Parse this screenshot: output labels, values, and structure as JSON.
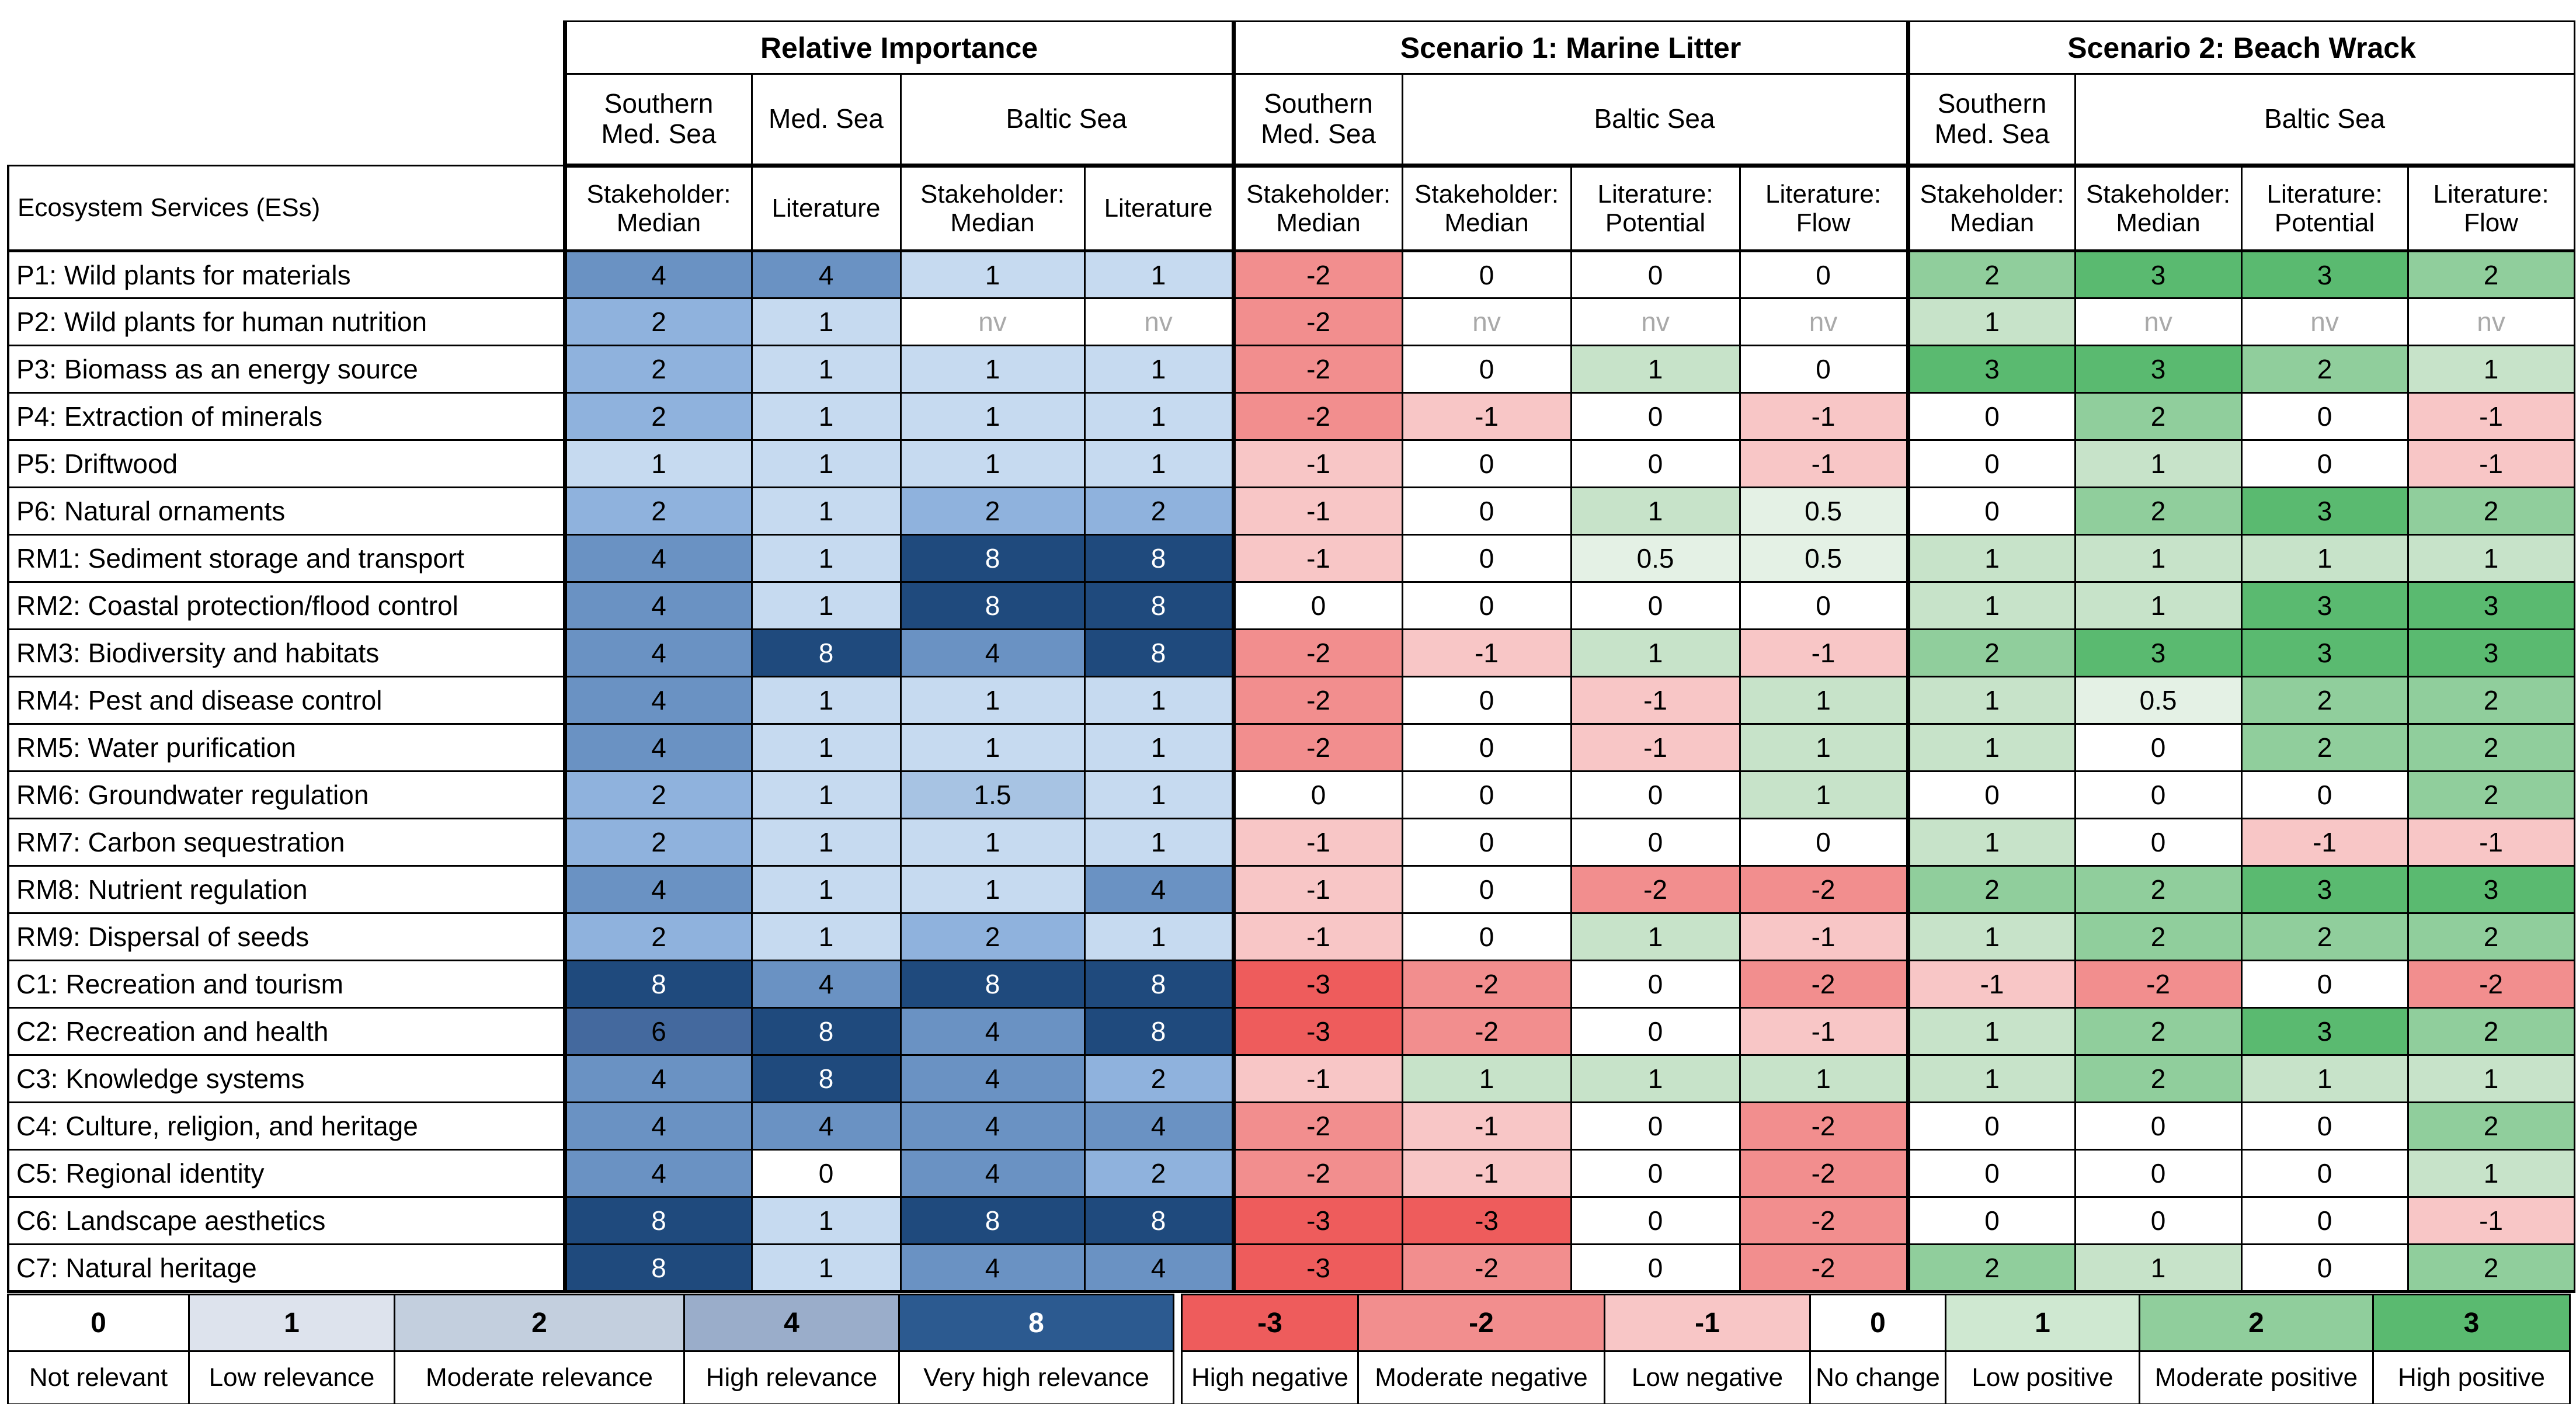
{
  "chart_data": {
    "type": "heatmap",
    "corner_label": "Ecosystem Services (ESs)",
    "groups": [
      {
        "label": "Relative Importance",
        "scale": "relevance",
        "seas": [
          {
            "label": "Southern\nMed. Sea",
            "span": 1
          },
          {
            "label": "Med. Sea",
            "span": 1
          },
          {
            "label": "Baltic Sea",
            "span": 2
          }
        ],
        "columns": [
          "Stakeholder:\nMedian",
          "Literature",
          "Stakeholder:\nMedian",
          "Literature"
        ]
      },
      {
        "label": "Scenario 1: Marine Litter",
        "scale": "change",
        "seas": [
          {
            "label": "Southern\nMed. Sea",
            "span": 1
          },
          {
            "label": "Baltic Sea",
            "span": 3
          }
        ],
        "columns": [
          "Stakeholder:\nMedian",
          "Stakeholder:\nMedian",
          "Literature:\nPotential",
          "Literature:\nFlow"
        ]
      },
      {
        "label": "Scenario 2: Beach Wrack",
        "scale": "change",
        "seas": [
          {
            "label": "Southern\nMed. Sea",
            "span": 1
          },
          {
            "label": "Baltic Sea",
            "span": 3
          }
        ],
        "columns": [
          "Stakeholder:\nMedian",
          "Stakeholder:\nMedian",
          "Literature:\nPotential",
          "Literature:\nFlow"
        ]
      }
    ],
    "rows": [
      {
        "label": "P1: Wild plants for materials",
        "values": [
          "4",
          "4",
          "1",
          "1",
          "-2",
          "0",
          "0",
          "0",
          "2",
          "3",
          "3",
          "2"
        ]
      },
      {
        "label": "P2: Wild plants for human nutrition",
        "values": [
          "2",
          "1",
          "nv",
          "nv",
          "-2",
          "nv",
          "nv",
          "nv",
          "1",
          "nv",
          "nv",
          "nv"
        ]
      },
      {
        "label": "P3: Biomass as an energy source",
        "values": [
          "2",
          "1",
          "1",
          "1",
          "-2",
          "0",
          "1",
          "0",
          "3",
          "3",
          "2",
          "1"
        ]
      },
      {
        "label": "P4: Extraction of minerals",
        "values": [
          "2",
          "1",
          "1",
          "1",
          "-2",
          "-1",
          "0",
          "-1",
          "0",
          "2",
          "0",
          "-1"
        ]
      },
      {
        "label": "P5: Driftwood",
        "values": [
          "1",
          "1",
          "1",
          "1",
          "-1",
          "0",
          "0",
          "-1",
          "0",
          "1",
          "0",
          "-1"
        ]
      },
      {
        "label": "P6: Natural ornaments",
        "values": [
          "2",
          "1",
          "2",
          "2",
          "-1",
          "0",
          "1",
          "0.5",
          "0",
          "2",
          "3",
          "2"
        ]
      },
      {
        "label": "RM1: Sediment storage and transport",
        "values": [
          "4",
          "1",
          "8",
          "8",
          "-1",
          "0",
          "0.5",
          "0.5",
          "1",
          "1",
          "1",
          "1"
        ]
      },
      {
        "label": "RM2: Coastal protection/flood control",
        "values": [
          "4",
          "1",
          "8",
          "8",
          "0",
          "0",
          "0",
          "0",
          "1",
          "1",
          "3",
          "3"
        ]
      },
      {
        "label": "RM3: Biodiversity and habitats",
        "values": [
          "4",
          "8",
          "4",
          "8",
          "-2",
          "-1",
          "1",
          "-1",
          "2",
          "3",
          "3",
          "3"
        ]
      },
      {
        "label": "RM4: Pest and disease control",
        "values": [
          "4",
          "1",
          "1",
          "1",
          "-2",
          "0",
          "-1",
          "1",
          "1",
          "0.5",
          "2",
          "2"
        ]
      },
      {
        "label": "RM5: Water purification",
        "values": [
          "4",
          "1",
          "1",
          "1",
          "-2",
          "0",
          "-1",
          "1",
          "1",
          "0",
          "2",
          "2"
        ]
      },
      {
        "label": "RM6: Groundwater regulation",
        "values": [
          "2",
          "1",
          "1.5",
          "1",
          "0",
          "0",
          "0",
          "1",
          "0",
          "0",
          "0",
          "2"
        ]
      },
      {
        "label": "RM7: Carbon sequestration",
        "values": [
          "2",
          "1",
          "1",
          "1",
          "-1",
          "0",
          "0",
          "0",
          "1",
          "0",
          "-1",
          "-1"
        ]
      },
      {
        "label": "RM8: Nutrient regulation",
        "values": [
          "4",
          "1",
          "1",
          "4",
          "-1",
          "0",
          "-2",
          "-2",
          "2",
          "2",
          "3",
          "3"
        ]
      },
      {
        "label": "RM9: Dispersal of seeds",
        "values": [
          "2",
          "1",
          "2",
          "1",
          "-1",
          "0",
          "1",
          "-1",
          "1",
          "2",
          "2",
          "2"
        ]
      },
      {
        "label": "C1: Recreation and  tourism",
        "values": [
          "8",
          "4",
          "8",
          "8",
          "-3",
          "-2",
          "0",
          "-2",
          "-1",
          "-2",
          "0",
          "-2"
        ]
      },
      {
        "label": "C2: Recreation and health",
        "values": [
          "6",
          "8",
          "4",
          "8",
          "-3",
          "-2",
          "0",
          "-1",
          "1",
          "2",
          "3",
          "2"
        ]
      },
      {
        "label": "C3: Knowledge systems",
        "values": [
          "4",
          "8",
          "4",
          "2",
          "-1",
          "1",
          "1",
          "1",
          "1",
          "2",
          "1",
          "1"
        ]
      },
      {
        "label": "C4: Culture, religion, and heritage",
        "values": [
          "4",
          "4",
          "4",
          "4",
          "-2",
          "-1",
          "0",
          "-2",
          "0",
          "0",
          "0",
          "2"
        ]
      },
      {
        "label": "C5: Regional identity",
        "values": [
          "4",
          "0",
          "4",
          "2",
          "-2",
          "-1",
          "0",
          "-2",
          "0",
          "0",
          "0",
          "1"
        ]
      },
      {
        "label": "C6: Landscape aesthetics",
        "values": [
          "8",
          "1",
          "8",
          "8",
          "-3",
          "-3",
          "0",
          "-2",
          "0",
          "0",
          "0",
          "-1"
        ]
      },
      {
        "label": "C7: Natural heritage",
        "values": [
          "8",
          "1",
          "4",
          "4",
          "-3",
          "-2",
          "0",
          "-2",
          "2",
          "1",
          "0",
          "2"
        ]
      }
    ],
    "legend_relevance": {
      "values": [
        "0",
        "1",
        "2",
        "4",
        "8"
      ],
      "labels": [
        "Not relevant",
        "Low relevance",
        "Moderate relevance",
        "High relevance",
        "Very high relevance"
      ]
    },
    "legend_change": {
      "values": [
        "-3",
        "-2",
        "-1",
        "0",
        "1",
        "2",
        "3"
      ],
      "labels": [
        "High negative",
        "Moderate negative",
        "Low negative",
        "No change",
        "Low positive",
        "Moderate positive",
        "High positive"
      ]
    },
    "palette": {
      "relevance": {
        "0": {
          "bg": "#ffffff",
          "fg": "#000000"
        },
        "1": {
          "bg": "#c6daf0",
          "fg": "#000000"
        },
        "1.5": {
          "bg": "#a7c3e3",
          "fg": "#000000"
        },
        "2": {
          "bg": "#8fb2dd",
          "fg": "#000000"
        },
        "4": {
          "bg": "#6a92c3",
          "fg": "#000000"
        },
        "6": {
          "bg": "#44699e",
          "fg": "#000000"
        },
        "8": {
          "bg": "#1f4a7d",
          "fg": "#ffffff"
        },
        "nv": {
          "bg": "#ffffff",
          "fg": "#a9a9a9"
        }
      },
      "change": {
        "-3": {
          "bg": "#ee5c5c",
          "fg": "#000000"
        },
        "-2": {
          "bg": "#f28e8e",
          "fg": "#000000"
        },
        "-1": {
          "bg": "#f8c6c6",
          "fg": "#000000"
        },
        "0": {
          "bg": "#ffffff",
          "fg": "#000000"
        },
        "0.5": {
          "bg": "#e4f1e5",
          "fg": "#000000"
        },
        "1": {
          "bg": "#c7e3c9",
          "fg": "#000000"
        },
        "2": {
          "bg": "#90ce9c",
          "fg": "#000000"
        },
        "3": {
          "bg": "#5aba70",
          "fg": "#000000"
        },
        "nv": {
          "bg": "#ffffff",
          "fg": "#a9a9a9"
        }
      },
      "relevance_legend": {
        "0": {
          "bg": "#ffffff",
          "fg": "#000000"
        },
        "1": {
          "bg": "#dde3ed",
          "fg": "#000000"
        },
        "2": {
          "bg": "#c3cfde",
          "fg": "#000000"
        },
        "4": {
          "bg": "#9aadca",
          "fg": "#000000"
        },
        "8": {
          "bg": "#2c5a90",
          "fg": "#ffffff"
        }
      },
      "change_legend": {
        "-3": {
          "bg": "#ee5c5c",
          "fg": "#000000"
        },
        "-2": {
          "bg": "#f28e8e",
          "fg": "#000000"
        },
        "-1": {
          "bg": "#f8c6c6",
          "fg": "#000000"
        },
        "0": {
          "bg": "#ffffff",
          "fg": "#000000"
        },
        "1": {
          "bg": "#cfe8d1",
          "fg": "#000000"
        },
        "2": {
          "bg": "#90ce9c",
          "fg": "#000000"
        },
        "3": {
          "bg": "#5aba70",
          "fg": "#000000"
        }
      }
    }
  }
}
